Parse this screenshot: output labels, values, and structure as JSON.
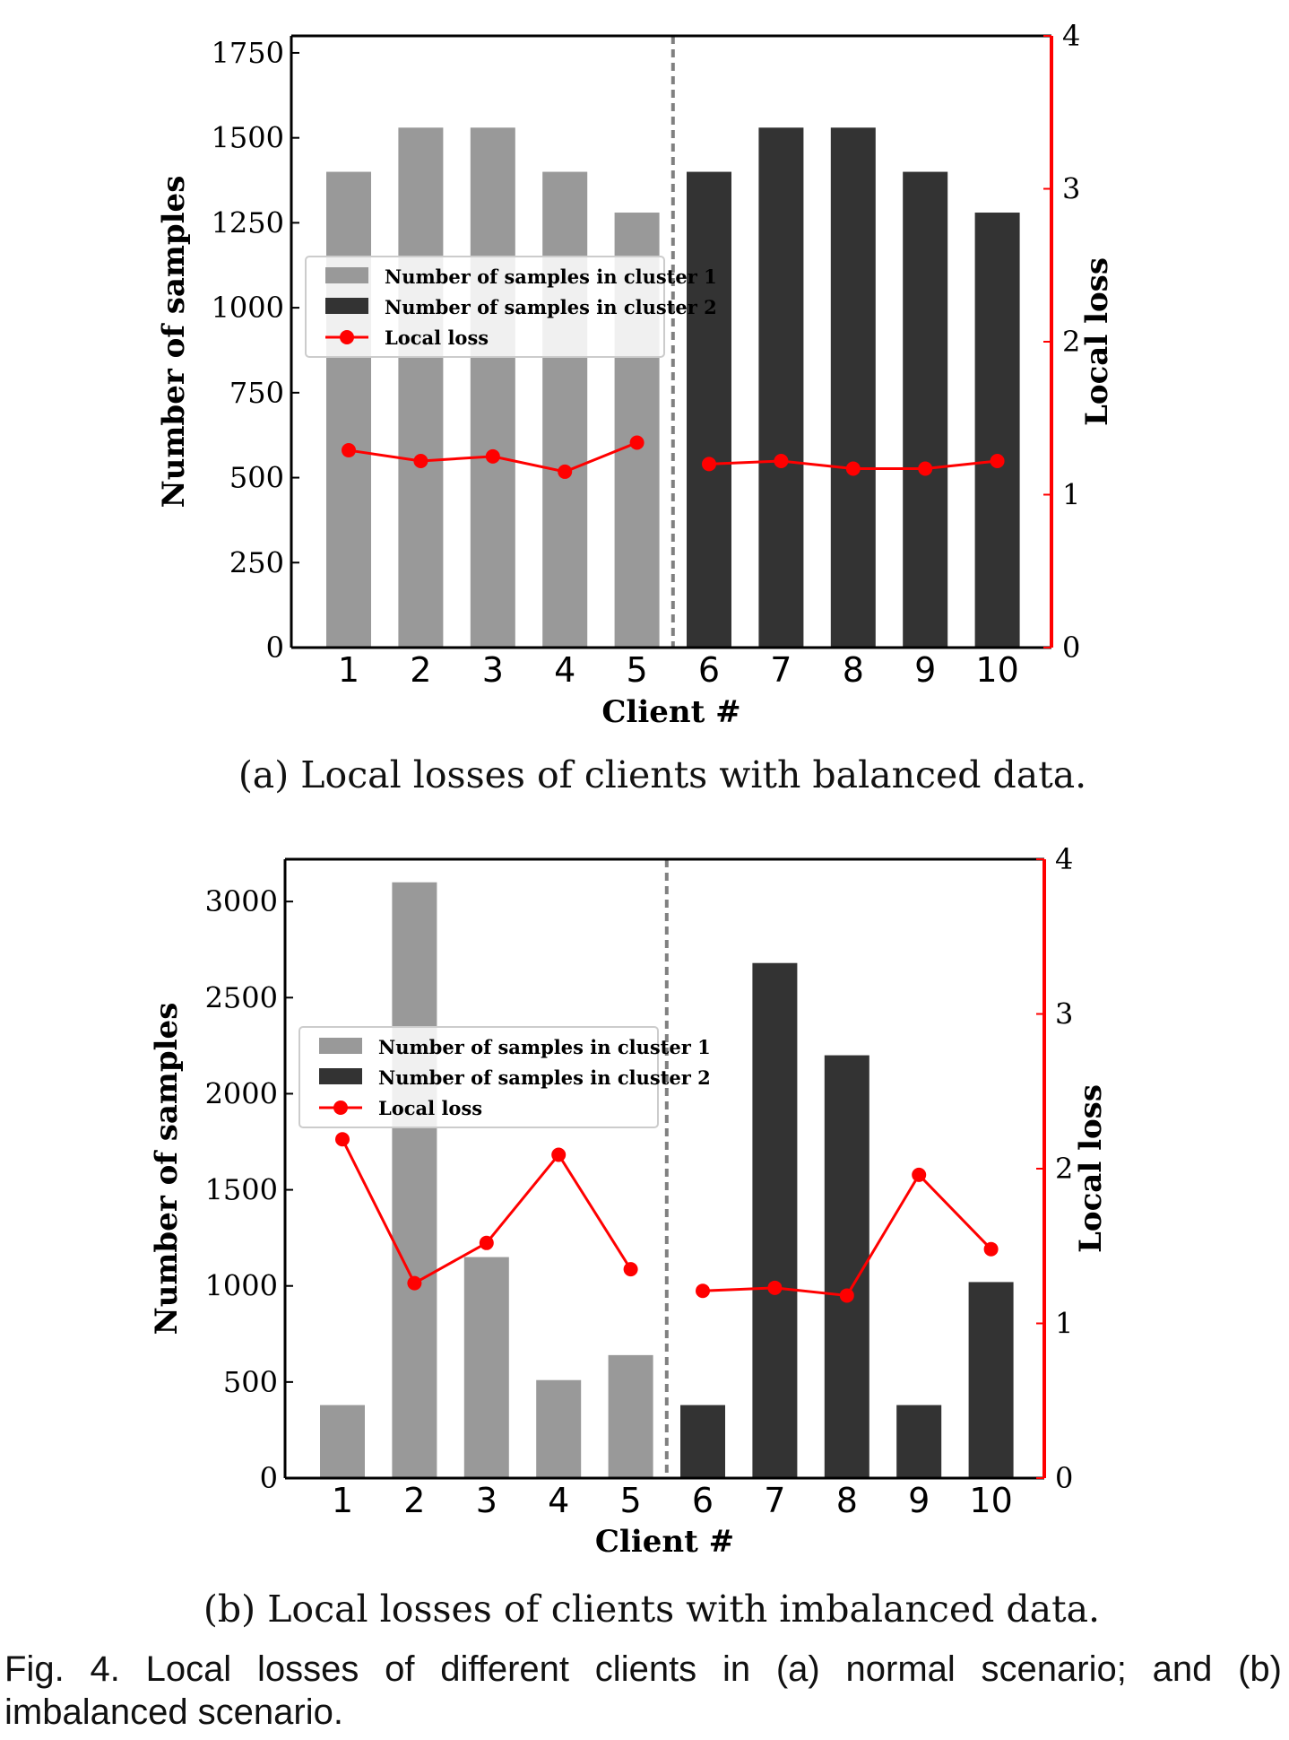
{
  "chart_data": [
    {
      "type": "bar",
      "subtitle": "(a) Local losses of clients with balanced data.",
      "categories": [
        "1",
        "2",
        "3",
        "4",
        "5",
        "6",
        "7",
        "8",
        "9",
        "10"
      ],
      "xlabel": "Client #",
      "ylabel": "Number of samples",
      "y2label": "Local loss",
      "ylim": [
        0,
        1800
      ],
      "yticks": [
        "0",
        "250",
        "500",
        "750",
        "1000",
        "1250",
        "1500",
        "1750"
      ],
      "y2lim": [
        0,
        4
      ],
      "y2ticks": [
        "0",
        "1",
        "2",
        "3",
        "4"
      ],
      "divider_after_category": 5,
      "legend_position": "center-left",
      "series": [
        {
          "name": "Number of samples in cluster 1",
          "kind": "bar",
          "color": "#999999",
          "x": [
            "1",
            "2",
            "3",
            "4",
            "5"
          ],
          "values": [
            1400,
            1530,
            1530,
            1400,
            1280
          ]
        },
        {
          "name": "Number of samples in cluster 2",
          "kind": "bar",
          "color": "#333333",
          "x": [
            "6",
            "7",
            "8",
            "9",
            "10"
          ],
          "values": [
            1400,
            1530,
            1530,
            1400,
            1280
          ]
        },
        {
          "name": "Local loss",
          "kind": "line",
          "axis": "right",
          "color": "#ff0000",
          "segments": [
            {
              "x": [
                "1",
                "2",
                "3",
                "4",
                "5"
              ],
              "values": [
                1.29,
                1.22,
                1.25,
                1.15,
                1.34
              ]
            },
            {
              "x": [
                "6",
                "7",
                "8",
                "9",
                "10"
              ],
              "values": [
                1.2,
                1.22,
                1.17,
                1.17,
                1.22
              ]
            }
          ]
        }
      ]
    },
    {
      "type": "bar",
      "subtitle": "(b) Local losses of clients with imbalanced data.",
      "categories": [
        "1",
        "2",
        "3",
        "4",
        "5",
        "6",
        "7",
        "8",
        "9",
        "10"
      ],
      "xlabel": "Client #",
      "ylabel": "Number of samples",
      "y2label": "Local loss",
      "ylim": [
        0,
        3220
      ],
      "yticks": [
        "0",
        "500",
        "1000",
        "1500",
        "2000",
        "2500",
        "3000"
      ],
      "y2lim": [
        0,
        4
      ],
      "y2ticks": [
        "0",
        "1",
        "2",
        "3",
        "4"
      ],
      "divider_after_category": 5,
      "legend_position": "center-left",
      "series": [
        {
          "name": "Number of samples in cluster 1",
          "kind": "bar",
          "color": "#999999",
          "x": [
            "1",
            "2",
            "3",
            "4",
            "5"
          ],
          "values": [
            380,
            3100,
            1150,
            510,
            640
          ]
        },
        {
          "name": "Number of samples in cluster 2",
          "kind": "bar",
          "color": "#333333",
          "x": [
            "6",
            "7",
            "8",
            "9",
            "10"
          ],
          "values": [
            380,
            2680,
            2200,
            380,
            1020
          ]
        },
        {
          "name": "Local loss",
          "kind": "line",
          "axis": "right",
          "color": "#ff0000",
          "segments": [
            {
              "x": [
                "1",
                "2",
                "3",
                "4",
                "5"
              ],
              "values": [
                2.19,
                1.26,
                1.52,
                2.09,
                1.35
              ]
            },
            {
              "x": [
                "6",
                "7",
                "8",
                "9",
                "10"
              ],
              "values": [
                1.21,
                1.23,
                1.18,
                1.96,
                1.48
              ]
            }
          ]
        }
      ]
    }
  ],
  "figure_caption": "Fig. 4. Local losses of different clients in (a) normal scenario; and (b) imbalanced scenario."
}
